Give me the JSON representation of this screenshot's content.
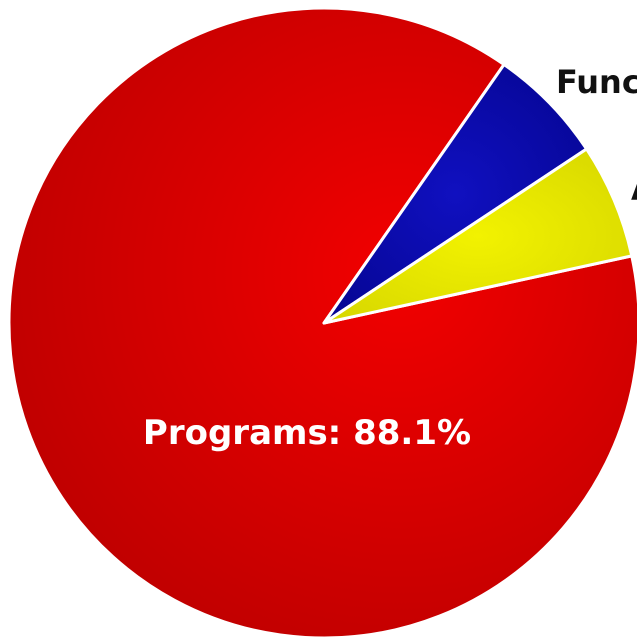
{
  "chart_data": {
    "type": "pie",
    "slices": [
      {
        "name": "Programs",
        "value": 88.1,
        "color": "#dd0000",
        "label": "Programs: 88.1%"
      },
      {
        "name": "Fund",
        "value": 6.0,
        "color": "#0a0aa6",
        "label": "Func"
      },
      {
        "name": "",
        "value": 5.9,
        "color": "#e6e600",
        "label": "A"
      }
    ],
    "title": "",
    "legend": "none"
  }
}
